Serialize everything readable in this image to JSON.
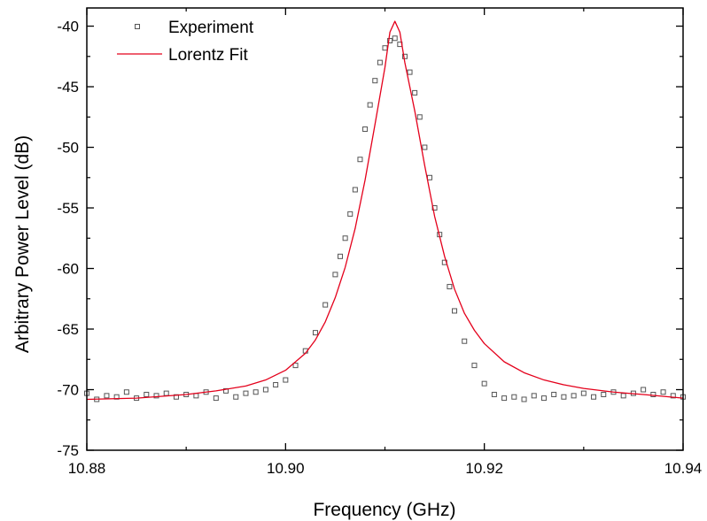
{
  "chart_data": {
    "type": "scatter",
    "title": "",
    "xlabel": "Frequency (GHz)",
    "ylabel": "Arbitrary Power Level (dB)",
    "xlim": [
      10.88,
      10.94
    ],
    "ylim": [
      -75,
      -38.5
    ],
    "xticks": [
      10.88,
      10.9,
      10.92,
      10.94
    ],
    "xtick_labels": [
      "10.88",
      "10.90",
      "10.92",
      "10.94"
    ],
    "yticks": [
      -75,
      -70,
      -65,
      -60,
      -55,
      -50,
      -45,
      -40
    ],
    "ytick_labels": [
      "-75",
      "-70",
      "-65",
      "-60",
      "-55",
      "-50",
      "-45",
      "-40"
    ],
    "grid": false,
    "legend_position": "top-left",
    "series": [
      {
        "name": "Experiment",
        "kind": "scatter",
        "marker": "open-square",
        "color": "#000000",
        "x": [
          10.88,
          10.881,
          10.882,
          10.883,
          10.884,
          10.885,
          10.886,
          10.887,
          10.888,
          10.889,
          10.89,
          10.891,
          10.892,
          10.893,
          10.894,
          10.895,
          10.896,
          10.897,
          10.898,
          10.899,
          10.9,
          10.901,
          10.902,
          10.903,
          10.904,
          10.905,
          10.9055,
          10.906,
          10.9065,
          10.907,
          10.9075,
          10.908,
          10.9085,
          10.909,
          10.9095,
          10.91,
          10.9105,
          10.911,
          10.9115,
          10.912,
          10.9125,
          10.913,
          10.9135,
          10.914,
          10.9145,
          10.915,
          10.9155,
          10.916,
          10.9165,
          10.917,
          10.918,
          10.919,
          10.92,
          10.921,
          10.922,
          10.923,
          10.924,
          10.925,
          10.926,
          10.927,
          10.928,
          10.929,
          10.93,
          10.931,
          10.932,
          10.933,
          10.934,
          10.935,
          10.936,
          10.937,
          10.938,
          10.939,
          10.94
        ],
        "y": [
          -70.3,
          -70.8,
          -70.5,
          -70.6,
          -70.2,
          -70.7,
          -70.4,
          -70.5,
          -70.3,
          -70.6,
          -70.4,
          -70.5,
          -70.2,
          -70.7,
          -70.1,
          -70.6,
          -70.3,
          -70.2,
          -70.0,
          -69.6,
          -69.2,
          -68.0,
          -66.8,
          -65.3,
          -63.0,
          -60.5,
          -59.0,
          -57.5,
          -55.5,
          -53.5,
          -51.0,
          -48.5,
          -46.5,
          -44.5,
          -43.0,
          -41.8,
          -41.2,
          -41.0,
          -41.5,
          -42.5,
          -43.8,
          -45.5,
          -47.5,
          -50.0,
          -52.5,
          -55.0,
          -57.2,
          -59.5,
          -61.5,
          -63.5,
          -66.0,
          -68.0,
          -69.5,
          -70.4,
          -70.7,
          -70.6,
          -70.8,
          -70.5,
          -70.7,
          -70.4,
          -70.6,
          -70.5,
          -70.3,
          -70.6,
          -70.4,
          -70.2,
          -70.5,
          -70.3,
          -70.0,
          -70.4,
          -70.2,
          -70.5,
          -70.6
        ]
      },
      {
        "name": "Lorentz Fit",
        "kind": "line",
        "color": "#e4001b",
        "x": [
          10.88,
          10.885,
          10.89,
          10.893,
          10.896,
          10.898,
          10.9,
          10.902,
          10.903,
          10.904,
          10.905,
          10.906,
          10.907,
          10.908,
          10.909,
          10.91,
          10.9105,
          10.911,
          10.9115,
          10.912,
          10.913,
          10.914,
          10.915,
          10.916,
          10.917,
          10.918,
          10.919,
          10.92,
          10.922,
          10.924,
          10.926,
          10.928,
          10.93,
          10.933,
          10.936,
          10.94
        ],
        "y": [
          -70.8,
          -70.7,
          -70.4,
          -70.1,
          -69.7,
          -69.2,
          -68.4,
          -67.0,
          -65.9,
          -64.4,
          -62.4,
          -59.9,
          -56.7,
          -52.7,
          -48.1,
          -43.4,
          -40.5,
          -39.6,
          -40.5,
          -43.0,
          -47.0,
          -51.5,
          -55.7,
          -59.0,
          -61.7,
          -63.7,
          -65.1,
          -66.2,
          -67.7,
          -68.6,
          -69.2,
          -69.6,
          -69.9,
          -70.2,
          -70.4,
          -70.7
        ]
      }
    ]
  }
}
